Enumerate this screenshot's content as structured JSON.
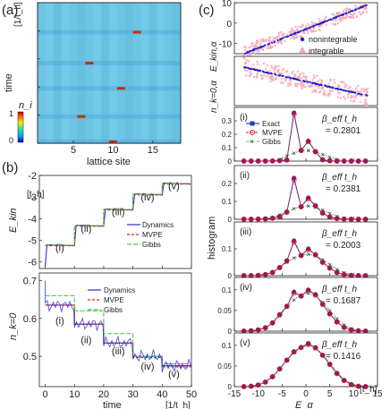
{
  "panel_labels": {
    "a": "(a)",
    "b": "(b)",
    "c": "(c)"
  },
  "colors": {
    "dynamics": "#2b2bd6",
    "mvpe": "#e41a1c",
    "gibbs": "#44d244",
    "exact": "#1f3fbf",
    "nonintegrable": "#1d1dd0",
    "integrable": "#f4a6b2",
    "heatmap_bg": "#6ec6e6"
  },
  "chart_data": [
    {
      "id": "a",
      "type": "heatmap",
      "xlabel": "lattice site",
      "ylabel": "time",
      "y_unit": "[1/t_h]",
      "x_ticks": [
        5,
        10,
        15
      ],
      "y_ticks": [
        0,
        10,
        20,
        30,
        40
      ],
      "xlim": [
        0.5,
        18.5
      ],
      "ylim": [
        0,
        50
      ],
      "colorbar": {
        "label": "n_i",
        "ticks": [
          0,
          0.5,
          1
        ],
        "colors": [
          "#0000b0",
          "#00a0ff",
          "#40e0a0",
          "#f0f000",
          "#ff6000",
          "#b00000"
        ]
      },
      "impurities": [
        {
          "site": 13,
          "time": 39.5
        },
        {
          "site": 7,
          "time": 28.5
        },
        {
          "site": 11,
          "time": 19.5
        },
        {
          "site": 6,
          "time": 9.5
        },
        {
          "site": 10,
          "time": 0.5
        }
      ]
    },
    {
      "id": "b-top",
      "type": "line",
      "ylabel": "E_kin",
      "y_unit": "[t_h]",
      "ylim": [
        -6.3,
        -2
      ],
      "xlim": [
        -2,
        50
      ],
      "y_ticks": [
        -6,
        -5,
        -4,
        -3,
        -2
      ],
      "annotations": [
        "(i)",
        "(ii)",
        "(iii)",
        "(iv)",
        "(v)"
      ],
      "legend": [
        "Dynamics",
        "MVPE",
        "Gibbs"
      ],
      "series": [
        {
          "name": "Dynamics",
          "points": [
            [
              0,
              -6.2
            ],
            [
              0.6,
              -5.2
            ],
            [
              10,
              -5.25
            ],
            [
              10.6,
              -4.3
            ],
            [
              20,
              -4.35
            ],
            [
              20.6,
              -3.55
            ],
            [
              30,
              -3.6
            ],
            [
              30.6,
              -2.85
            ],
            [
              40,
              -2.9
            ],
            [
              40.6,
              -2.35
            ],
            [
              50,
              -2.4
            ]
          ]
        },
        {
          "name": "MVPE",
          "steps": [
            [
              0,
              10,
              -5.25
            ],
            [
              10,
              20,
              -4.35
            ],
            [
              20,
              30,
              -3.6
            ],
            [
              30,
              40,
              -2.9
            ],
            [
              40,
              50,
              -2.4
            ]
          ]
        },
        {
          "name": "Gibbs",
          "steps": [
            [
              0,
              10,
              -5.22
            ],
            [
              10,
              20,
              -4.32
            ],
            [
              20,
              30,
              -3.57
            ],
            [
              30,
              40,
              -2.87
            ],
            [
              40,
              50,
              -2.37
            ]
          ]
        }
      ]
    },
    {
      "id": "b-bottom",
      "type": "line",
      "ylabel": "n_k=0",
      "xlabel": "time",
      "x_unit": "[1/t_h]",
      "ylim": [
        0.42,
        0.72
      ],
      "xlim": [
        -2,
        50
      ],
      "y_ticks": [
        0.5,
        0.6,
        0.7
      ],
      "x_ticks": [
        0,
        10,
        20,
        30,
        40,
        50
      ],
      "annotations": [
        "(i)",
        "(ii)",
        "(iii)",
        "(iv)",
        "(v)"
      ],
      "legend": [
        "Dynamics",
        "MVPE",
        "Gibbs"
      ],
      "series": [
        {
          "name": "Dynamics",
          "steps": [
            [
              0,
              10,
              0.635
            ],
            [
              10,
              20,
              0.585
            ],
            [
              20,
              30,
              0.535
            ],
            [
              30,
              40,
              0.5
            ],
            [
              40,
              50,
              0.475
            ]
          ]
        },
        {
          "name": "MVPE",
          "steps": [
            [
              0,
              10,
              0.635
            ],
            [
              10,
              20,
              0.585
            ],
            [
              20,
              30,
              0.535
            ],
            [
              30,
              40,
              0.497
            ],
            [
              40,
              50,
              0.472
            ]
          ]
        },
        {
          "name": "Gibbs",
          "steps": [
            [
              0,
              10,
              0.66
            ],
            [
              10,
              20,
              0.62
            ],
            [
              20,
              30,
              0.56
            ],
            [
              30,
              40,
              0.5
            ],
            [
              40,
              50,
              0.48
            ]
          ]
        }
      ]
    },
    {
      "id": "c-top",
      "type": "scatter",
      "ylabel": "E_kin,α",
      "ylim": [
        -15,
        10
      ],
      "xlim": [
        -15,
        15
      ],
      "y_ticks": [
        -10,
        0,
        10
      ],
      "legend": [
        "nonintegrable",
        "integrable"
      ],
      "series": [
        {
          "name": "nonintegrable",
          "trend": {
            "x0": -13,
            "y0": -15,
            "x1": 13,
            "y1": 9
          }
        },
        {
          "name": "integrable",
          "trend": {
            "x0": -13,
            "y0": -14,
            "x1": 13,
            "y1": 8,
            "spread": 3
          }
        }
      ]
    },
    {
      "id": "c-second",
      "type": "scatter",
      "ylabel": "n_k=0,α",
      "ylim": [
        0,
        1
      ],
      "xlim": [
        -15,
        15
      ],
      "series": [
        {
          "name": "nonintegrable",
          "trend": {
            "x0": -13,
            "y0": 0.78,
            "x1": 13,
            "y1": 0.2
          }
        },
        {
          "name": "integrable",
          "trend": {
            "x0": -13,
            "y0": 0.8,
            "x1": 13,
            "y1": 0.18,
            "spread": 0.18
          }
        }
      ]
    },
    {
      "id": "c-hist",
      "type": "line",
      "ylabel": "histogram",
      "xlabel": "E_α",
      "x_unit": "[t_h]",
      "xlim": [
        -15,
        15
      ],
      "x_ticks": [
        -15,
        -10,
        -5,
        0,
        5,
        10,
        15
      ],
      "legend": [
        "Exact",
        "MVPE",
        "Gibbs"
      ],
      "x": [
        -13,
        -11.5,
        -10,
        -8.5,
        -7,
        -5.5,
        -4,
        -2.5,
        -1,
        0.5,
        2,
        3.5,
        5,
        6.5,
        8,
        9.5,
        11,
        12.5
      ],
      "panels": [
        {
          "label": "(i)",
          "beta_label": "β_eff t_h",
          "beta": "= 0.2801",
          "ylim": [
            0,
            0.4
          ],
          "y_ticks": [
            0,
            0.1,
            0.2,
            0.3
          ],
          "exact": [
            0,
            0,
            0,
            0,
            0.001,
            0.003,
            0.008,
            0.36,
            0.08,
            0.15,
            0.07,
            0.01,
            0.002,
            0,
            0,
            0,
            0,
            0
          ],
          "mvpe": [
            0,
            0,
            0,
            0,
            0.001,
            0.003,
            0.008,
            0.35,
            0.08,
            0.145,
            0.07,
            0.01,
            0.002,
            0,
            0,
            0,
            0,
            0
          ],
          "gibbs": [
            0,
            0,
            0,
            0.002,
            0.005,
            0.015,
            0.04,
            0.06,
            0.075,
            0.08,
            0.07,
            0.05,
            0.03,
            0.012,
            0.004,
            0.001,
            0,
            0
          ]
        },
        {
          "label": "(ii)",
          "beta_label": "β_eff t_h",
          "beta": "= 0.2381",
          "ylim": [
            0,
            0.3
          ],
          "y_ticks": [
            0,
            0.1,
            0.2
          ],
          "exact": [
            0,
            0,
            0.001,
            0.002,
            0.006,
            0.015,
            0.04,
            0.23,
            0.07,
            0.12,
            0.075,
            0.035,
            0.012,
            0.004,
            0.001,
            0,
            0,
            0
          ],
          "mvpe": [
            0,
            0,
            0.001,
            0.002,
            0.006,
            0.015,
            0.04,
            0.22,
            0.07,
            0.115,
            0.075,
            0.035,
            0.012,
            0.004,
            0.001,
            0,
            0,
            0
          ],
          "gibbs": [
            0,
            0,
            0.001,
            0.004,
            0.01,
            0.025,
            0.045,
            0.06,
            0.07,
            0.075,
            0.068,
            0.052,
            0.033,
            0.017,
            0.007,
            0.002,
            0.001,
            0
          ]
        },
        {
          "label": "(iii)",
          "beta_label": "β_eff t_h",
          "beta": "= 0.2003",
          "ylim": [
            0,
            0.2
          ],
          "y_ticks": [
            0,
            0.1
          ],
          "exact": [
            0,
            0,
            0.001,
            0.004,
            0.012,
            0.03,
            0.055,
            0.13,
            0.075,
            0.1,
            0.078,
            0.05,
            0.028,
            0.012,
            0.004,
            0.001,
            0,
            0
          ],
          "mvpe": [
            0,
            0,
            0.001,
            0.004,
            0.012,
            0.03,
            0.055,
            0.125,
            0.075,
            0.097,
            0.078,
            0.05,
            0.028,
            0.012,
            0.004,
            0.001,
            0,
            0
          ],
          "gibbs": [
            0,
            0,
            0.002,
            0.006,
            0.014,
            0.03,
            0.05,
            0.066,
            0.076,
            0.08,
            0.074,
            0.06,
            0.042,
            0.024,
            0.011,
            0.004,
            0.001,
            0
          ]
        },
        {
          "label": "(iv)",
          "beta_label": "β_eff t_h",
          "beta": "= 0.1687",
          "ylim": [
            0,
            0.13
          ],
          "y_ticks": [
            0,
            0.05,
            0.1
          ],
          "exact": [
            0,
            0.001,
            0.003,
            0.008,
            0.02,
            0.04,
            0.06,
            0.095,
            0.085,
            0.1,
            0.088,
            0.065,
            0.042,
            0.022,
            0.009,
            0.003,
            0.001,
            0
          ],
          "mvpe": [
            0,
            0.001,
            0.003,
            0.008,
            0.02,
            0.04,
            0.06,
            0.092,
            0.085,
            0.098,
            0.088,
            0.065,
            0.042,
            0.022,
            0.009,
            0.003,
            0.001,
            0
          ],
          "gibbs": [
            0,
            0.001,
            0.003,
            0.009,
            0.02,
            0.037,
            0.058,
            0.076,
            0.088,
            0.092,
            0.086,
            0.07,
            0.05,
            0.03,
            0.015,
            0.006,
            0.002,
            0
          ]
        },
        {
          "label": "(v)",
          "beta_label": "β_eff t_h",
          "beta": "= 0.1416",
          "ylim": [
            0,
            0.13
          ],
          "y_ticks": [
            0,
            0.05,
            0.1
          ],
          "exact": [
            0,
            0.001,
            0.004,
            0.011,
            0.024,
            0.043,
            0.064,
            0.085,
            0.095,
            0.105,
            0.094,
            0.076,
            0.054,
            0.032,
            0.015,
            0.005,
            0.001,
            0
          ],
          "mvpe": [
            0,
            0.001,
            0.004,
            0.011,
            0.024,
            0.043,
            0.064,
            0.084,
            0.095,
            0.103,
            0.094,
            0.076,
            0.054,
            0.032,
            0.015,
            0.005,
            0.001,
            0
          ],
          "gibbs": [
            0,
            0.001,
            0.004,
            0.011,
            0.024,
            0.043,
            0.064,
            0.083,
            0.095,
            0.1,
            0.094,
            0.078,
            0.056,
            0.034,
            0.017,
            0.007,
            0.002,
            0
          ]
        }
      ]
    }
  ]
}
